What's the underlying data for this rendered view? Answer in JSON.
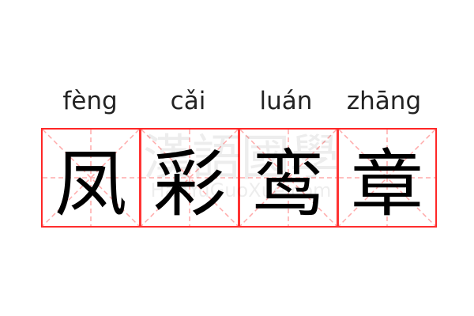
{
  "words": [
    {
      "pinyin": "fèng",
      "char": "凤"
    },
    {
      "pinyin": "cǎi",
      "char": "彩"
    },
    {
      "pinyin": "luán",
      "char": "鸾"
    },
    {
      "pinyin": "zhāng",
      "char": "章"
    }
  ],
  "watermark": {
    "chars": "漢語國學",
    "site": "HanYuGuoXue.com"
  },
  "colors": {
    "border": "#ff3333",
    "guide": "#ffaaaa",
    "text": "#000000"
  }
}
